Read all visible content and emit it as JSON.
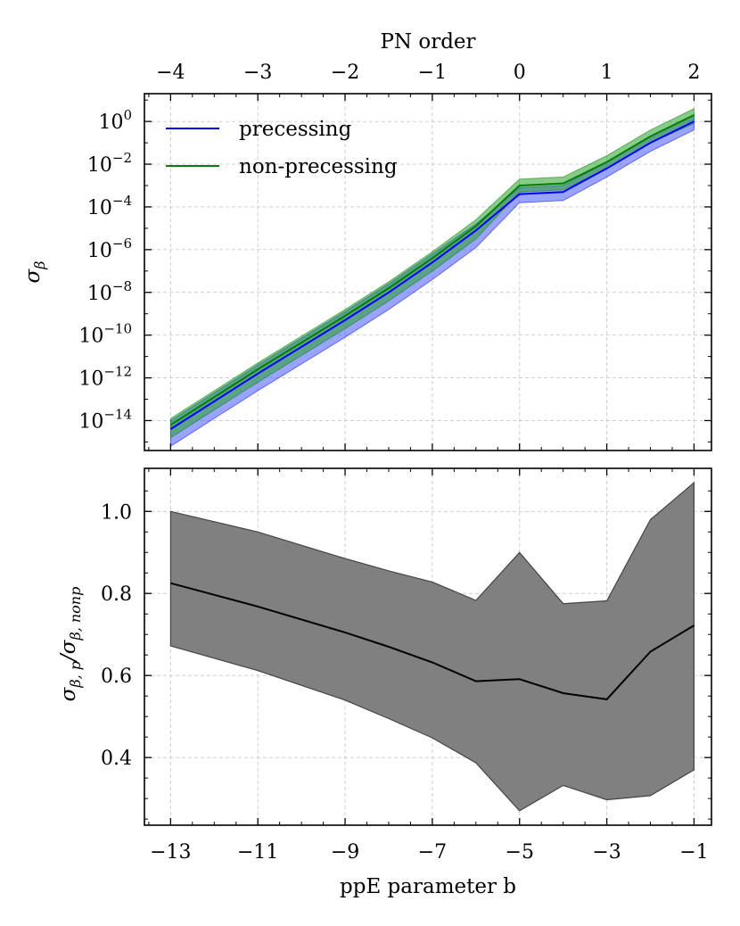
{
  "chart_data": [
    {
      "type": "line",
      "panel": "top",
      "ylabel": "σβ",
      "yscale": "log",
      "ylim_log10": [
        -15.4,
        1.3
      ],
      "ytick_exponents": [
        0,
        -2,
        -4,
        -6,
        -8,
        -10,
        -12,
        -14
      ],
      "ytick_base": "10",
      "xlim": [
        -13.6,
        -0.6
      ],
      "top_axis": {
        "xlabel": "PN order",
        "tick_labels": [
          "−4",
          "−3",
          "−2",
          "−1",
          "0",
          "1",
          "2"
        ],
        "tick_positions_b": [
          -13,
          -11,
          -9,
          -7,
          -5,
          -3,
          -1
        ]
      },
      "grid": true,
      "legend": "top-left",
      "x": [
        -13,
        -11,
        -9,
        -8,
        -7,
        -6,
        -5,
        -4,
        -3,
        -2,
        -1
      ],
      "series": [
        {
          "name": "precessing",
          "color": "#0000ff",
          "log10_values": [
            -14.4,
            -11.8,
            -9.3,
            -8.0,
            -6.6,
            -5.1,
            -3.4,
            -3.3,
            -2.2,
            -1.0,
            0.0
          ],
          "log10_lower": [
            -15.2,
            -12.6,
            -10.1,
            -8.8,
            -7.4,
            -5.9,
            -3.8,
            -3.7,
            -2.6,
            -1.4,
            -0.4
          ],
          "log10_upper": [
            -14.0,
            -11.4,
            -8.9,
            -7.6,
            -6.2,
            -4.8,
            -3.1,
            -3.0,
            -1.9,
            -0.7,
            0.3
          ]
        },
        {
          "name": "non-precessing",
          "color": "#008000",
          "log10_values": [
            -14.2,
            -11.6,
            -9.1,
            -7.8,
            -6.4,
            -4.9,
            -3.0,
            -2.9,
            -1.9,
            -0.7,
            0.3
          ],
          "log10_lower": [
            -14.8,
            -12.2,
            -9.7,
            -8.4,
            -7.0,
            -5.5,
            -3.3,
            -3.2,
            -2.2,
            -1.0,
            -0.1
          ],
          "log10_upper": [
            -13.9,
            -11.3,
            -8.8,
            -7.5,
            -6.1,
            -4.6,
            -2.7,
            -2.6,
            -1.6,
            -0.4,
            0.6
          ]
        }
      ],
      "band_color": "#2e7d7d"
    },
    {
      "type": "area",
      "panel": "bottom",
      "xlabel": "ppE parameter b",
      "ylabel": "σβ,p/σβ,nonp",
      "xlim": [
        -13.6,
        -0.6
      ],
      "ylim": [
        0.235,
        1.105
      ],
      "xticks": [
        -13,
        -11,
        -9,
        -7,
        -5,
        -3,
        -1
      ],
      "xtick_labels": [
        "−13",
        "−11",
        "−9",
        "−7",
        "−5",
        "−3",
        "−1"
      ],
      "yticks": [
        0.4,
        0.6,
        0.8,
        1.0
      ],
      "ytick_labels": [
        "0.4",
        "0.6",
        "0.8",
        "1.0"
      ],
      "grid": true,
      "x": [
        -13,
        -11,
        -9,
        -8,
        -7,
        -6,
        -5,
        -4,
        -3,
        -2,
        -1
      ],
      "values": [
        0.825,
        0.768,
        0.705,
        0.67,
        0.632,
        0.586,
        0.591,
        0.557,
        0.542,
        0.658,
        0.722
      ],
      "lower": [
        0.672,
        0.612,
        0.54,
        0.495,
        0.448,
        0.387,
        0.27,
        0.332,
        0.297,
        0.307,
        0.37
      ],
      "upper": [
        1.0,
        0.95,
        0.885,
        0.855,
        0.828,
        0.783,
        0.9,
        0.775,
        0.782,
        0.98,
        1.07
      ],
      "line_color": "#000000",
      "band_color": "#808080"
    }
  ]
}
